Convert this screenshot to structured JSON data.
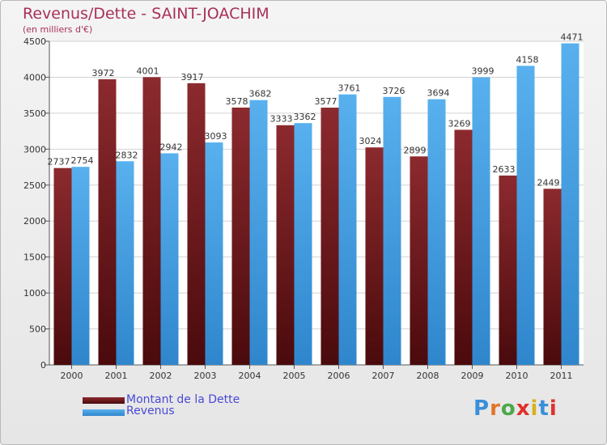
{
  "chart_data": {
    "type": "bar",
    "title": "Revenus/Dette - SAINT-JOACHIM",
    "subtitle": "(en milliers d'€)",
    "categories": [
      "2000",
      "2001",
      "2002",
      "2003",
      "2004",
      "2005",
      "2006",
      "2007",
      "2008",
      "2009",
      "2010",
      "2011"
    ],
    "series": [
      {
        "name": "Montant de la Dette",
        "color": "#7a1b1f",
        "values": [
          2737,
          3972,
          4001,
          3917,
          3578,
          3333,
          3577,
          3024,
          2899,
          3269,
          2633,
          2449
        ],
        "labels": [
          "2737",
          "3972",
          "4001",
          "3917",
          "3578",
          "3333",
          "3577",
          "3024",
          "2899",
          "3269",
          "2633",
          "2449"
        ]
      },
      {
        "name": "Revenus",
        "color": "#4aa3e6",
        "values": [
          2754,
          2832,
          2942,
          3093,
          3682,
          3362,
          3761,
          3726,
          3694,
          3999,
          4158,
          4471
        ],
        "labels": [
          "2754",
          "2832",
          "2942",
          "3093",
          "3682",
          "3362",
          "3761",
          "3726",
          "3694",
          "3999",
          "4158",
          "4471"
        ]
      }
    ],
    "yticks": [
      "0",
      "500",
      "1000",
      "1500",
      "2000",
      "2500",
      "3000",
      "3500",
      "4000",
      "4500"
    ],
    "ylim": [
      0,
      4500
    ],
    "grid": true,
    "legend_position": "bottom-left"
  },
  "logo_text": "Proxiti"
}
